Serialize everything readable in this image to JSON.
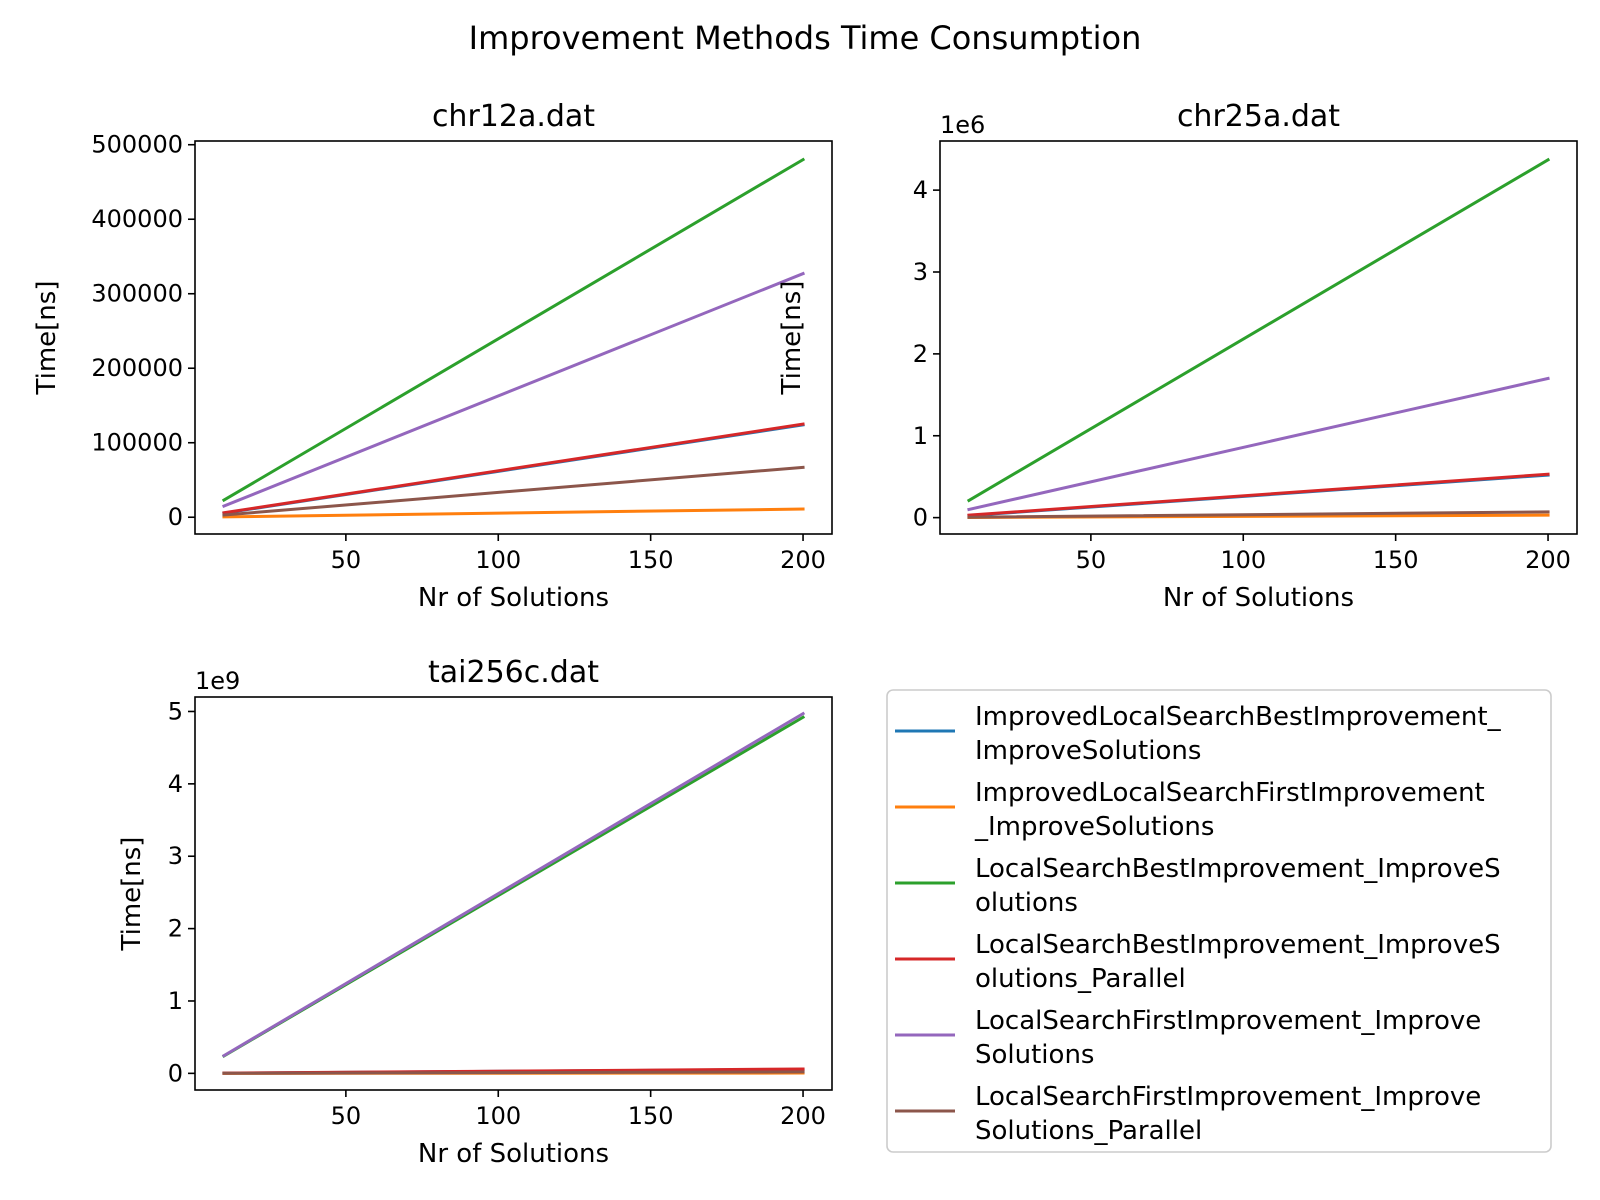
{
  "figure": {
    "title": "Improvement Methods Time Consumption"
  },
  "colors": {
    "blue": "#1f77b4",
    "orange": "#ff7f0e",
    "green": "#2ca02c",
    "red": "#d62728",
    "purple": "#9467bd",
    "brown": "#8c564b"
  },
  "legend": {
    "placement": "bottom-right",
    "entries": [
      {
        "color": "#1f77b4",
        "lines": [
          "ImprovedLocalSearchBestImprovement_",
          "ImproveSolutions"
        ]
      },
      {
        "color": "#ff7f0e",
        "lines": [
          "ImprovedLocalSearchFirstImprovement",
          "_ImproveSolutions"
        ]
      },
      {
        "color": "#2ca02c",
        "lines": [
          "LocalSearchBestImprovement_ImproveS",
          "olutions"
        ]
      },
      {
        "color": "#d62728",
        "lines": [
          "LocalSearchBestImprovement_ImproveS",
          "olutions_Parallel"
        ]
      },
      {
        "color": "#9467bd",
        "lines": [
          "LocalSearchFirstImprovement_Improve",
          "Solutions"
        ]
      },
      {
        "color": "#8c564b",
        "lines": [
          "LocalSearchFirstImprovement_Improve",
          "Solutions_Parallel"
        ]
      }
    ]
  },
  "chart_data": [
    {
      "type": "line",
      "title": "chr12a.dat",
      "xlabel": "Nr of Solutions",
      "ylabel": "Time[ns]",
      "offset_text": "",
      "x": [
        10,
        200
      ],
      "xlim": [
        0.5,
        209.5
      ],
      "ylim": [
        -22500,
        505000
      ],
      "xticks": [
        50,
        100,
        150,
        200
      ],
      "xtick_labels": [
        "50",
        "100",
        "150",
        "200"
      ],
      "yticks": [
        0,
        100000,
        200000,
        300000,
        400000,
        500000
      ],
      "ytick_labels": [
        "0",
        "100000",
        "200000",
        "300000",
        "400000",
        "500000"
      ],
      "series": [
        {
          "color": "#1f77b4",
          "values": [
            5500,
            124000
          ]
        },
        {
          "color": "#ff7f0e",
          "values": [
            500,
            11000
          ]
        },
        {
          "color": "#2ca02c",
          "values": [
            23000,
            480000
          ]
        },
        {
          "color": "#d62728",
          "values": [
            6000,
            125000
          ]
        },
        {
          "color": "#9467bd",
          "values": [
            15000,
            327000
          ]
        },
        {
          "color": "#8c564b",
          "values": [
            3000,
            67000
          ]
        }
      ]
    },
    {
      "type": "line",
      "title": "chr25a.dat",
      "xlabel": "Nr of Solutions",
      "ylabel": "Time[ns]",
      "offset_text": "1e6",
      "x": [
        10,
        200
      ],
      "xlim": [
        0.5,
        209.5
      ],
      "ylim": [
        -0.2,
        4.6
      ],
      "xticks": [
        50,
        100,
        150,
        200
      ],
      "xtick_labels": [
        "50",
        "100",
        "150",
        "200"
      ],
      "yticks": [
        0,
        1,
        2,
        3,
        4
      ],
      "ytick_labels": [
        "0",
        "1",
        "2",
        "3",
        "4"
      ],
      "series": [
        {
          "color": "#1f77b4",
          "values": [
            0.025,
            0.52
          ]
        },
        {
          "color": "#ff7f0e",
          "values": [
            0.002,
            0.03
          ]
        },
        {
          "color": "#2ca02c",
          "values": [
            0.21,
            4.37
          ]
        },
        {
          "color": "#d62728",
          "values": [
            0.03,
            0.53
          ]
        },
        {
          "color": "#9467bd",
          "values": [
            0.1,
            1.7
          ]
        },
        {
          "color": "#8c564b",
          "values": [
            0.005,
            0.07
          ]
        }
      ]
    },
    {
      "type": "line",
      "title": "tai256c.dat",
      "xlabel": "Nr of Solutions",
      "ylabel": "Time[ns]",
      "offset_text": "1e9",
      "x": [
        10,
        200
      ],
      "xlim": [
        0.5,
        209.5
      ],
      "ylim": [
        -0.23,
        5.2
      ],
      "xticks": [
        50,
        100,
        150,
        200
      ],
      "xtick_labels": [
        "50",
        "100",
        "150",
        "200"
      ],
      "yticks": [
        0,
        1,
        2,
        3,
        4,
        5
      ],
      "ytick_labels": [
        "0",
        "1",
        "2",
        "3",
        "4",
        "5"
      ],
      "series": [
        {
          "color": "#1f77b4",
          "values": [
            0.003,
            0.055
          ]
        },
        {
          "color": "#ff7f0e",
          "values": [
            0.0,
            0.004
          ]
        },
        {
          "color": "#2ca02c",
          "values": [
            0.24,
            4.92
          ]
        },
        {
          "color": "#d62728",
          "values": [
            0.003,
            0.06
          ]
        },
        {
          "color": "#9467bd",
          "values": [
            0.245,
            4.97
          ]
        },
        {
          "color": "#8c564b",
          "values": [
            0.001,
            0.02
          ]
        }
      ]
    }
  ]
}
